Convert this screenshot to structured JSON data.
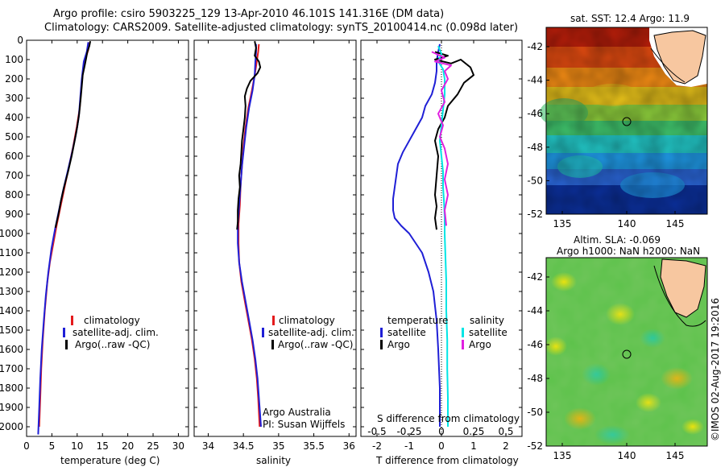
{
  "header": {
    "title_line1": "Argo profile: csiro 5903225_129 13-Apr-2010 46.101S 141.316E (DM data)",
    "title_line2": "Climatology: CARS2009. Satellite-adjusted climatology: synTS_20100414.nc (0.098d later)"
  },
  "map_sst": {
    "title": "sat. SST: 12.4 Argo: 11.9",
    "ytick_labels": [
      "-42",
      "-44",
      "-46",
      "-48",
      "-50",
      "-52"
    ],
    "xtick_labels": [
      "135",
      "140",
      "145"
    ]
  },
  "map_sla": {
    "title_line1": "Altim. SLA: -0.069",
    "title_line2": "Argo h1000: NaN h2000: NaN",
    "ytick_labels": [
      "-42",
      "-44",
      "-46",
      "-48",
      "-50",
      "-52"
    ],
    "xtick_labels": [
      "135",
      "140",
      "145"
    ]
  },
  "credit": {
    "line1": "Argo Australia",
    "line2": "PI: Susan Wijffels",
    "imos": "©IMOS 02-Aug-2017 19:2016"
  },
  "colors": {
    "climatology": "#e41a1c",
    "satellite": "#1f1fd6",
    "argo": "#000000",
    "salinity_satellite": "#00e5e5",
    "salinity_argo": "#e020e0"
  },
  "chart_data": [
    {
      "type": "line",
      "xlabel": "temperature (deg C)",
      "ylabel": "",
      "xlim": [
        0,
        32
      ],
      "ylim": [
        2050,
        0
      ],
      "xticks": [
        0,
        5,
        10,
        15,
        20,
        25,
        30
      ],
      "yticks": [
        0,
        100,
        200,
        300,
        400,
        500,
        600,
        700,
        800,
        900,
        1000,
        1100,
        1200,
        1300,
        1400,
        1500,
        1600,
        1700,
        1800,
        1900,
        2000
      ],
      "legend": [
        "climatology",
        "satellite-adj. clim.",
        "Argo(..raw -QC)"
      ],
      "series": [
        {
          "name": "climatology",
          "color": "#e41a1c",
          "points": [
            [
              12.3,
              10
            ],
            [
              12.2,
              50
            ],
            [
              11.7,
              90
            ],
            [
              11.2,
              150
            ],
            [
              10.8,
              250
            ],
            [
              10.5,
              350
            ],
            [
              9.9,
              450
            ],
            [
              9.2,
              550
            ],
            [
              8.4,
              650
            ],
            [
              7.6,
              750
            ],
            [
              6.8,
              850
            ],
            [
              6.0,
              950
            ],
            [
              5.3,
              1050
            ],
            [
              4.6,
              1150
            ],
            [
              4.1,
              1250
            ],
            [
              3.6,
              1400
            ],
            [
              3.2,
              1550
            ],
            [
              2.9,
              1700
            ],
            [
              2.7,
              1850
            ],
            [
              2.5,
              2000
            ]
          ]
        },
        {
          "name": "satellite-adj. clim.",
          "color": "#1f1fd6",
          "points": [
            [
              12.2,
              10
            ],
            [
              11.9,
              60
            ],
            [
              11.3,
              110
            ],
            [
              10.9,
              200
            ],
            [
              10.6,
              300
            ],
            [
              10.3,
              400
            ],
            [
              9.8,
              480
            ],
            [
              9.0,
              580
            ],
            [
              8.1,
              680
            ],
            [
              7.2,
              780
            ],
            [
              6.4,
              880
            ],
            [
              5.6,
              980
            ],
            [
              4.9,
              1080
            ],
            [
              4.3,
              1200
            ],
            [
              3.8,
              1320
            ],
            [
              3.4,
              1450
            ],
            [
              3.0,
              1600
            ],
            [
              2.7,
              1750
            ],
            [
              2.5,
              1900
            ],
            [
              2.3,
              2040
            ]
          ]
        },
        {
          "name": "Argo(..raw -QC)",
          "color": "#000000",
          "points": [
            [
              12.6,
              5
            ],
            [
              12.4,
              30
            ],
            [
              12.0,
              60
            ],
            [
              11.8,
              90
            ],
            [
              11.5,
              130
            ],
            [
              11.1,
              180
            ],
            [
              10.9,
              240
            ],
            [
              10.7,
              300
            ],
            [
              10.4,
              380
            ],
            [
              10.0,
              450
            ],
            [
              9.5,
              520
            ],
            [
              8.9,
              600
            ],
            [
              8.2,
              680
            ],
            [
              7.4,
              760
            ],
            [
              6.8,
              830
            ],
            [
              6.3,
              900
            ],
            [
              5.7,
              970
            ]
          ]
        }
      ]
    },
    {
      "type": "line",
      "xlabel": "salinity",
      "ylabel": "",
      "xlim": [
        33.8,
        36.1
      ],
      "ylim": [
        2050,
        0
      ],
      "xticks": [
        34,
        34.5,
        35,
        35.5,
        36
      ],
      "legend": [
        "climatology",
        "satellite-adj. clim.",
        "Argo(..raw -QC)"
      ],
      "series": [
        {
          "name": "climatology",
          "color": "#e41a1c",
          "points": [
            [
              34.72,
              20
            ],
            [
              34.71,
              60
            ],
            [
              34.69,
              110
            ],
            [
              34.66,
              180
            ],
            [
              34.62,
              260
            ],
            [
              34.57,
              350
            ],
            [
              34.53,
              450
            ],
            [
              34.5,
              550
            ],
            [
              34.48,
              650
            ],
            [
              34.46,
              750
            ],
            [
              34.45,
              850
            ],
            [
              34.43,
              950
            ],
            [
              34.43,
              1050
            ],
            [
              34.44,
              1150
            ],
            [
              34.47,
              1250
            ],
            [
              34.52,
              1350
            ],
            [
              34.57,
              1450
            ],
            [
              34.62,
              1550
            ],
            [
              34.66,
              1650
            ],
            [
              34.69,
              1750
            ],
            [
              34.71,
              1850
            ],
            [
              34.73,
              2000
            ]
          ]
        },
        {
          "name": "satellite-adj. clim.",
          "color": "#1f1fd6",
          "points": [
            [
              34.68,
              20
            ],
            [
              34.68,
              60
            ],
            [
              34.67,
              110
            ],
            [
              34.66,
              180
            ],
            [
              34.63,
              260
            ],
            [
              34.58,
              350
            ],
            [
              34.54,
              450
            ],
            [
              34.51,
              550
            ],
            [
              34.48,
              650
            ],
            [
              34.46,
              750
            ],
            [
              34.44,
              850
            ],
            [
              34.42,
              950
            ],
            [
              34.42,
              1050
            ],
            [
              34.44,
              1150
            ],
            [
              34.48,
              1250
            ],
            [
              34.53,
              1350
            ],
            [
              34.58,
              1450
            ],
            [
              34.63,
              1550
            ],
            [
              34.67,
              1650
            ],
            [
              34.7,
              1750
            ],
            [
              34.72,
              1850
            ],
            [
              34.75,
              2000
            ]
          ]
        },
        {
          "name": "Argo(..raw -QC)",
          "color": "#000000",
          "points": [
            [
              34.66,
              5
            ],
            [
              34.68,
              40
            ],
            [
              34.66,
              80
            ],
            [
              34.72,
              110
            ],
            [
              34.74,
              140
            ],
            [
              34.7,
              170
            ],
            [
              34.6,
              210
            ],
            [
              34.55,
              250
            ],
            [
              34.52,
              290
            ],
            [
              34.53,
              340
            ],
            [
              34.52,
              400
            ],
            [
              34.5,
              460
            ],
            [
              34.48,
              520
            ],
            [
              34.47,
              580
            ],
            [
              34.46,
              640
            ],
            [
              34.44,
              700
            ],
            [
              34.45,
              760
            ],
            [
              34.43,
              820
            ],
            [
              34.42,
              880
            ],
            [
              34.42,
              940
            ],
            [
              34.41,
              980
            ]
          ]
        }
      ]
    },
    {
      "type": "line",
      "xlabel": "T difference from climatology",
      "ylabel": "",
      "xlim": [
        -2.5,
        2.5
      ],
      "ylim": [
        2050,
        0
      ],
      "xticks": [
        -2,
        -1,
        0,
        1,
        2
      ],
      "secondary_axis": {
        "label": "S difference from climatology",
        "ticks": [
          -0.5,
          -0.25,
          0,
          0.25,
          0.5
        ]
      },
      "legend": [
        "temperature satellite",
        "temperature Argo",
        "salinity satellite",
        "salinity Argo"
      ],
      "legend_headers": [
        "temperature",
        "salinity"
      ],
      "legend_labels": [
        "satellite",
        "Argo",
        "satellite",
        "Argo"
      ],
      "series": [
        {
          "name": "temperature satellite",
          "color": "#1f1fd6",
          "points": [
            [
              -0.05,
              20
            ],
            [
              -0.1,
              60
            ],
            [
              -0.15,
              110
            ],
            [
              -0.15,
              160
            ],
            [
              -0.2,
              220
            ],
            [
              -0.3,
              280
            ],
            [
              -0.5,
              340
            ],
            [
              -0.6,
              400
            ],
            [
              -0.8,
              460
            ],
            [
              -1.0,
              520
            ],
            [
              -1.2,
              580
            ],
            [
              -1.35,
              640
            ],
            [
              -1.4,
              700
            ],
            [
              -1.45,
              760
            ],
            [
              -1.5,
              820
            ],
            [
              -1.5,
              880
            ],
            [
              -1.45,
              920
            ],
            [
              -1.25,
              960
            ],
            [
              -1.0,
              1000
            ],
            [
              -0.8,
              1050
            ],
            [
              -0.6,
              1100
            ],
            [
              -0.4,
              1200
            ],
            [
              -0.25,
              1300
            ],
            [
              -0.15,
              1450
            ],
            [
              -0.1,
              1600
            ],
            [
              -0.05,
              1800
            ],
            [
              -0.05,
              2000
            ]
          ]
        },
        {
          "name": "temperature Argo",
          "color": "#000000",
          "points": [
            [
              -0.2,
              60
            ],
            [
              0.2,
              80
            ],
            [
              -0.2,
              100
            ],
            [
              0.3,
              120
            ],
            [
              0.6,
              100
            ],
            [
              0.9,
              140
            ],
            [
              1.0,
              180
            ],
            [
              0.7,
              220
            ],
            [
              0.5,
              280
            ],
            [
              0.2,
              340
            ],
            [
              0.1,
              400
            ],
            [
              -0.1,
              460
            ],
            [
              -0.2,
              520
            ],
            [
              -0.1,
              600
            ],
            [
              -0.15,
              700
            ],
            [
              -0.2,
              800
            ],
            [
              -0.15,
              860
            ],
            [
              -0.2,
              920
            ],
            [
              -0.15,
              980
            ]
          ]
        },
        {
          "name": "salinity satellite",
          "color": "#00e5e5",
          "points": [
            [
              -0.1,
              30
            ],
            [
              0.0,
              70
            ],
            [
              -0.1,
              110
            ],
            [
              0.05,
              150
            ],
            [
              0.1,
              200
            ],
            [
              0.1,
              280
            ],
            [
              0.05,
              360
            ],
            [
              0.0,
              440
            ],
            [
              -0.05,
              520
            ],
            [
              0.0,
              600
            ],
            [
              0.05,
              680
            ],
            [
              0.05,
              760
            ],
            [
              0.08,
              840
            ],
            [
              0.1,
              920
            ],
            [
              0.1,
              1000
            ],
            [
              0.12,
              1100
            ],
            [
              0.15,
              1250
            ],
            [
              0.15,
              1400
            ],
            [
              0.18,
              1550
            ],
            [
              0.18,
              1700
            ],
            [
              0.2,
              1850
            ],
            [
              0.2,
              2000
            ]
          ]
        },
        {
          "name": "salinity Argo",
          "color": "#e020e0",
          "points": [
            [
              -0.3,
              60
            ],
            [
              0.1,
              90
            ],
            [
              -0.2,
              110
            ],
            [
              0.3,
              130
            ],
            [
              0.1,
              160
            ],
            [
              0.2,
              200
            ],
            [
              0.0,
              260
            ],
            [
              0.1,
              320
            ],
            [
              -0.1,
              380
            ],
            [
              0.05,
              440
            ],
            [
              -0.05,
              500
            ],
            [
              0.1,
              560
            ],
            [
              0.2,
              640
            ],
            [
              0.1,
              720
            ],
            [
              0.2,
              800
            ],
            [
              0.1,
              880
            ],
            [
              0.15,
              960
            ]
          ]
        }
      ]
    }
  ]
}
